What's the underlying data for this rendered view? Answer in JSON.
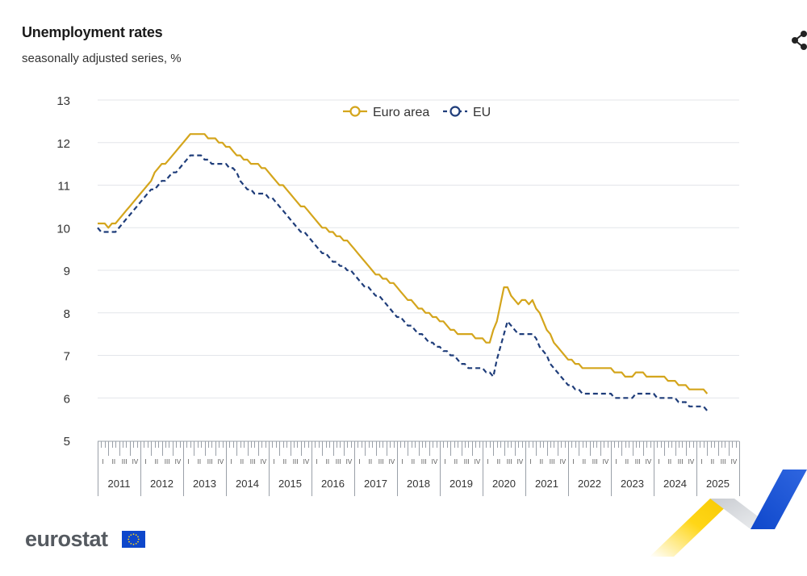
{
  "header": {
    "title": "Unemployment rates",
    "subtitle": "seasonally adjusted series, %",
    "share_icon": "share-icon"
  },
  "brand": {
    "name": "eurostat",
    "flag_icon": "eu-flag-icon"
  },
  "colors": {
    "euro_area": "#d4a51c",
    "eu": "#1f3d7a",
    "grid": "#e3e5ea",
    "axis": "#9aa0a8"
  },
  "chart_data": {
    "type": "line",
    "title": "Unemployment rates",
    "subtitle": "seasonally adjusted series, %",
    "xlabel": "",
    "ylabel": "",
    "ylim": [
      5,
      13
    ],
    "yticks": [
      5,
      6,
      7,
      8,
      9,
      10,
      11,
      12,
      13
    ],
    "grid": true,
    "legend_position": "top-center",
    "x_frequency": "monthly",
    "x_start": "2011-01",
    "x_end": "2025-04",
    "years": [
      "2011",
      "2012",
      "2013",
      "2014",
      "2015",
      "2016",
      "2017",
      "2018",
      "2019",
      "2020",
      "2021",
      "2022",
      "2023",
      "2024",
      "2025"
    ],
    "quarter_labels": [
      "I",
      "II",
      "III",
      "IV"
    ],
    "series": [
      {
        "name": "Euro area",
        "style": "solid",
        "anchors": [
          [
            "2011-01",
            10.1
          ],
          [
            "2011-03",
            10.1
          ],
          [
            "2011-04",
            10.0
          ],
          [
            "2011-06",
            10.1
          ],
          [
            "2011-09",
            10.4
          ],
          [
            "2011-12",
            10.7
          ],
          [
            "2012-03",
            11.0
          ],
          [
            "2012-06",
            11.4
          ],
          [
            "2012-09",
            11.6
          ],
          [
            "2012-12",
            11.9
          ],
          [
            "2013-03",
            12.2
          ],
          [
            "2013-06",
            12.2
          ],
          [
            "2013-09",
            12.1
          ],
          [
            "2013-12",
            12.0
          ],
          [
            "2014-03",
            11.8
          ],
          [
            "2014-06",
            11.6
          ],
          [
            "2014-09",
            11.5
          ],
          [
            "2014-12",
            11.4
          ],
          [
            "2015-03",
            11.1
          ],
          [
            "2015-06",
            10.9
          ],
          [
            "2015-09",
            10.6
          ],
          [
            "2015-12",
            10.4
          ],
          [
            "2016-03",
            10.1
          ],
          [
            "2016-06",
            9.9
          ],
          [
            "2016-09",
            9.8
          ],
          [
            "2016-12",
            9.6
          ],
          [
            "2017-03",
            9.3
          ],
          [
            "2017-06",
            9.0
          ],
          [
            "2017-09",
            8.8
          ],
          [
            "2017-12",
            8.7
          ],
          [
            "2018-03",
            8.4
          ],
          [
            "2018-06",
            8.2
          ],
          [
            "2018-09",
            8.0
          ],
          [
            "2018-12",
            7.9
          ],
          [
            "2019-03",
            7.7
          ],
          [
            "2019-06",
            7.5
          ],
          [
            "2019-09",
            7.5
          ],
          [
            "2019-12",
            7.4
          ],
          [
            "2020-03",
            7.3
          ],
          [
            "2020-05",
            7.8
          ],
          [
            "2020-07",
            8.6
          ],
          [
            "2020-08",
            8.6
          ],
          [
            "2020-09",
            8.4
          ],
          [
            "2020-11",
            8.2
          ],
          [
            "2020-12",
            8.3
          ],
          [
            "2021-02",
            8.2
          ],
          [
            "2021-03",
            8.3
          ],
          [
            "2021-06",
            7.8
          ],
          [
            "2021-09",
            7.3
          ],
          [
            "2021-12",
            7.0
          ],
          [
            "2022-03",
            6.8
          ],
          [
            "2022-06",
            6.7
          ],
          [
            "2022-09",
            6.7
          ],
          [
            "2022-12",
            6.7
          ],
          [
            "2023-03",
            6.6
          ],
          [
            "2023-06",
            6.5
          ],
          [
            "2023-09",
            6.6
          ],
          [
            "2023-12",
            6.5
          ],
          [
            "2024-03",
            6.5
          ],
          [
            "2024-06",
            6.4
          ],
          [
            "2024-09",
            6.3
          ],
          [
            "2024-12",
            6.2
          ],
          [
            "2025-03",
            6.2
          ],
          [
            "2025-04",
            6.1
          ]
        ]
      },
      {
        "name": "EU",
        "style": "dashed",
        "anchors": [
          [
            "2011-01",
            10.0
          ],
          [
            "2011-02",
            9.9
          ],
          [
            "2011-06",
            9.9
          ],
          [
            "2011-09",
            10.2
          ],
          [
            "2011-12",
            10.5
          ],
          [
            "2012-03",
            10.8
          ],
          [
            "2012-06",
            11.0
          ],
          [
            "2012-09",
            11.2
          ],
          [
            "2012-12",
            11.4
          ],
          [
            "2013-03",
            11.7
          ],
          [
            "2013-06",
            11.7
          ],
          [
            "2013-09",
            11.5
          ],
          [
            "2013-12",
            11.5
          ],
          [
            "2014-03",
            11.4
          ],
          [
            "2014-06",
            11.0
          ],
          [
            "2014-09",
            10.8
          ],
          [
            "2014-12",
            10.8
          ],
          [
            "2015-03",
            10.6
          ],
          [
            "2015-06",
            10.3
          ],
          [
            "2015-09",
            10.0
          ],
          [
            "2015-12",
            9.8
          ],
          [
            "2016-03",
            9.5
          ],
          [
            "2016-06",
            9.3
          ],
          [
            "2016-09",
            9.1
          ],
          [
            "2016-12",
            9.0
          ],
          [
            "2017-03",
            8.7
          ],
          [
            "2017-06",
            8.5
          ],
          [
            "2017-09",
            8.3
          ],
          [
            "2017-12",
            8.0
          ],
          [
            "2018-03",
            7.8
          ],
          [
            "2018-06",
            7.6
          ],
          [
            "2018-09",
            7.4
          ],
          [
            "2018-12",
            7.2
          ],
          [
            "2019-03",
            7.1
          ],
          [
            "2019-06",
            6.9
          ],
          [
            "2019-09",
            6.7
          ],
          [
            "2019-12",
            6.7
          ],
          [
            "2020-03",
            6.6
          ],
          [
            "2020-04",
            6.5
          ],
          [
            "2020-06",
            7.2
          ],
          [
            "2020-08",
            7.8
          ],
          [
            "2020-09",
            7.7
          ],
          [
            "2020-11",
            7.5
          ],
          [
            "2020-12",
            7.5
          ],
          [
            "2021-03",
            7.5
          ],
          [
            "2021-06",
            7.1
          ],
          [
            "2021-09",
            6.7
          ],
          [
            "2021-12",
            6.4
          ],
          [
            "2022-03",
            6.2
          ],
          [
            "2022-06",
            6.1
          ],
          [
            "2022-09",
            6.1
          ],
          [
            "2022-12",
            6.1
          ],
          [
            "2023-03",
            6.0
          ],
          [
            "2023-06",
            6.0
          ],
          [
            "2023-09",
            6.1
          ],
          [
            "2023-12",
            6.1
          ],
          [
            "2024-03",
            6.0
          ],
          [
            "2024-06",
            6.0
          ],
          [
            "2024-09",
            5.9
          ],
          [
            "2024-12",
            5.8
          ],
          [
            "2025-03",
            5.8
          ],
          [
            "2025-04",
            5.7
          ]
        ]
      }
    ]
  }
}
